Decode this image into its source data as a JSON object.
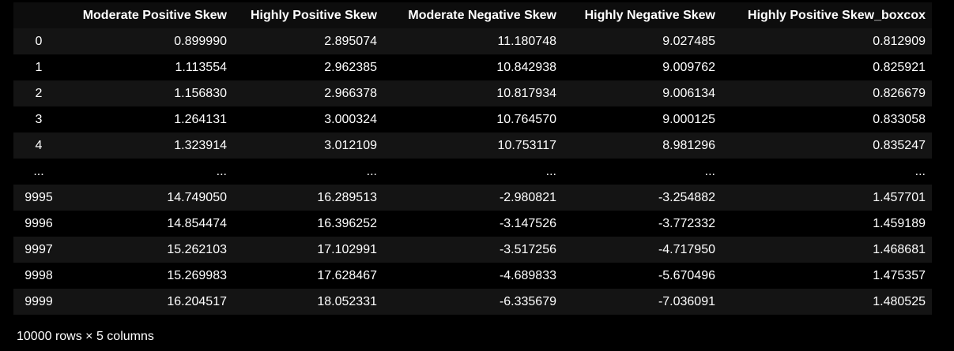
{
  "dataframe": {
    "columns": [
      "",
      "Moderate Positive Skew",
      "Highly Positive Skew",
      "Moderate Negative Skew",
      "Highly Negative Skew",
      "Highly Positive Skew_boxcox"
    ],
    "rows": [
      {
        "index": "0",
        "values": [
          "0.899990",
          "2.895074",
          "11.180748",
          "9.027485",
          "0.812909"
        ]
      },
      {
        "index": "1",
        "values": [
          "1.113554",
          "2.962385",
          "10.842938",
          "9.009762",
          "0.825921"
        ]
      },
      {
        "index": "2",
        "values": [
          "1.156830",
          "2.966378",
          "10.817934",
          "9.006134",
          "0.826679"
        ]
      },
      {
        "index": "3",
        "values": [
          "1.264131",
          "3.000324",
          "10.764570",
          "9.000125",
          "0.833058"
        ]
      },
      {
        "index": "4",
        "values": [
          "1.323914",
          "3.012109",
          "10.753117",
          "8.981296",
          "0.835247"
        ]
      },
      {
        "index": "...",
        "values": [
          "...",
          "...",
          "...",
          "...",
          "..."
        ]
      },
      {
        "index": "9995",
        "values": [
          "14.749050",
          "16.289513",
          "-2.980821",
          "-3.254882",
          "1.457701"
        ]
      },
      {
        "index": "9996",
        "values": [
          "14.854474",
          "16.396252",
          "-3.147526",
          "-3.772332",
          "1.459189"
        ]
      },
      {
        "index": "9997",
        "values": [
          "15.262103",
          "17.102991",
          "-3.517256",
          "-4.717950",
          "1.468681"
        ]
      },
      {
        "index": "9998",
        "values": [
          "15.269983",
          "17.628467",
          "-4.689833",
          "-5.670496",
          "1.475357"
        ]
      },
      {
        "index": "9999",
        "values": [
          "16.204517",
          "18.052331",
          "-6.335679",
          "-7.036091",
          "1.480525"
        ]
      }
    ],
    "shape": "10000 rows × 5 columns"
  }
}
